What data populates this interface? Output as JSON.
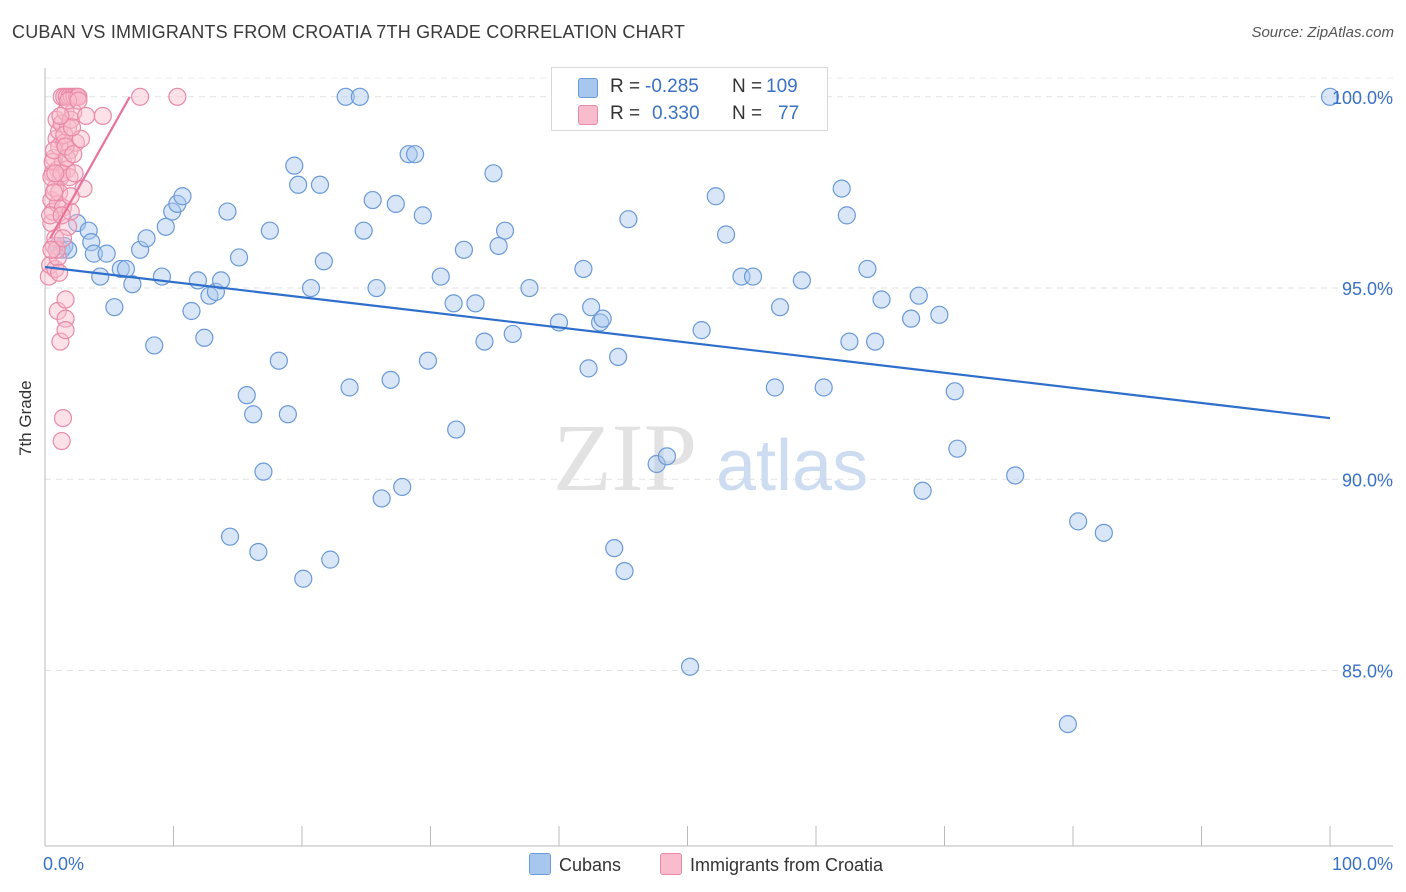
{
  "title": "CUBAN VS IMMIGRANTS FROM CROATIA 7TH GRADE CORRELATION CHART",
  "source": "Source: ZipAtlas.com",
  "watermark": {
    "zip": "ZIP",
    "atlas": "atlas"
  },
  "stats": [
    {
      "r_label": "R =",
      "r_value": "-0.285",
      "n_label": "N =",
      "n_value": "109",
      "color": "#a8c7ee",
      "border": "#6b9ad8"
    },
    {
      "r_label": "R =",
      "r_value": "0.330",
      "n_label": "N =",
      "n_value": "77",
      "color": "#f8bccd",
      "border": "#e98aa8"
    }
  ],
  "legend": [
    {
      "label": "Cubans",
      "color": "#a8c7ee",
      "border": "#6b9ad8"
    },
    {
      "label": "Immigrants from Croatia",
      "color": "#f8bccd",
      "border": "#e98aa8"
    }
  ],
  "chart_data": {
    "type": "scatter",
    "title": "CUBAN VS IMMIGRANTS FROM CROATIA 7TH GRADE CORRELATION CHART",
    "xlabel": "",
    "ylabel": "7th Grade",
    "xlim": [
      0,
      100
    ],
    "ylim": [
      80.5,
      100.5
    ],
    "x_tick_labels": [
      "0.0%",
      "100.0%"
    ],
    "y_ticks": [
      85,
      90,
      95,
      100
    ],
    "y_tick_labels": [
      "85.0%",
      "90.0%",
      "95.0%",
      "100.0%"
    ],
    "grid": true,
    "legend_position": "bottom",
    "series": [
      {
        "name": "Cubans",
        "color": "#6b9ad8",
        "fill": "#a8c7ee",
        "trend": {
          "x": [
            0,
            100
          ],
          "y": [
            95.55,
            91.6
          ],
          "color": "#2f6fcc"
        },
        "points": [
          [
            1.0,
            96.1
          ],
          [
            1.3,
            96.0
          ],
          [
            1.5,
            96.1
          ],
          [
            1.8,
            96.0
          ],
          [
            2.5,
            96.7
          ],
          [
            3.4,
            96.5
          ],
          [
            3.6,
            96.2
          ],
          [
            3.8,
            95.9
          ],
          [
            4.3,
            95.3
          ],
          [
            4.8,
            95.9
          ],
          [
            5.4,
            94.5
          ],
          [
            5.9,
            95.5
          ],
          [
            6.3,
            95.5
          ],
          [
            6.8,
            95.1
          ],
          [
            7.4,
            96.0
          ],
          [
            7.9,
            96.3
          ],
          [
            8.5,
            93.5
          ],
          [
            9.1,
            95.3
          ],
          [
            9.4,
            96.6
          ],
          [
            9.9,
            97.0
          ],
          [
            10.3,
            97.2
          ],
          [
            10.7,
            97.4
          ],
          [
            11.4,
            94.4
          ],
          [
            11.9,
            95.2
          ],
          [
            12.4,
            93.7
          ],
          [
            12.8,
            94.8
          ],
          [
            13.3,
            94.9
          ],
          [
            13.7,
            95.2
          ],
          [
            14.2,
            97.0
          ],
          [
            14.4,
            88.5
          ],
          [
            15.1,
            95.8
          ],
          [
            15.7,
            92.2
          ],
          [
            16.2,
            91.7
          ],
          [
            16.6,
            88.1
          ],
          [
            17.0,
            90.2
          ],
          [
            17.5,
            96.5
          ],
          [
            18.2,
            93.1
          ],
          [
            18.9,
            91.7
          ],
          [
            19.4,
            98.2
          ],
          [
            19.7,
            97.7
          ],
          [
            20.1,
            87.4
          ],
          [
            20.7,
            95.0
          ],
          [
            21.4,
            97.7
          ],
          [
            21.7,
            95.7
          ],
          [
            22.2,
            87.9
          ],
          [
            23.4,
            100.0
          ],
          [
            23.7,
            92.4
          ],
          [
            24.5,
            100.0
          ],
          [
            24.8,
            96.5
          ],
          [
            25.5,
            97.3
          ],
          [
            25.8,
            95.0
          ],
          [
            26.2,
            89.5
          ],
          [
            26.9,
            92.6
          ],
          [
            27.3,
            97.2
          ],
          [
            27.8,
            89.8
          ],
          [
            28.3,
            98.5
          ],
          [
            28.8,
            98.5
          ],
          [
            29.4,
            96.9
          ],
          [
            29.8,
            93.1
          ],
          [
            30.8,
            95.3
          ],
          [
            31.8,
            94.6
          ],
          [
            32.0,
            91.3
          ],
          [
            32.6,
            96.0
          ],
          [
            33.5,
            94.6
          ],
          [
            34.2,
            93.6
          ],
          [
            34.9,
            98.0
          ],
          [
            35.3,
            96.1
          ],
          [
            35.8,
            96.5
          ],
          [
            36.4,
            93.8
          ],
          [
            37.7,
            95.0
          ],
          [
            40.0,
            94.1
          ],
          [
            41.9,
            95.5
          ],
          [
            42.3,
            92.9
          ],
          [
            42.5,
            94.5
          ],
          [
            43.2,
            94.1
          ],
          [
            43.4,
            94.2
          ],
          [
            44.3,
            88.2
          ],
          [
            44.6,
            93.2
          ],
          [
            45.1,
            87.6
          ],
          [
            45.4,
            96.8
          ],
          [
            47.6,
            90.4
          ],
          [
            48.4,
            90.6
          ],
          [
            50.2,
            85.1
          ],
          [
            51.1,
            93.9
          ],
          [
            52.2,
            97.4
          ],
          [
            53.0,
            96.4
          ],
          [
            54.2,
            95.3
          ],
          [
            55.1,
            95.3
          ],
          [
            56.8,
            92.4
          ],
          [
            57.2,
            94.5
          ],
          [
            58.9,
            95.2
          ],
          [
            60.6,
            92.4
          ],
          [
            62.0,
            97.6
          ],
          [
            62.4,
            96.9
          ],
          [
            62.6,
            93.6
          ],
          [
            64.0,
            95.5
          ],
          [
            64.6,
            93.6
          ],
          [
            65.1,
            94.7
          ],
          [
            67.4,
            94.2
          ],
          [
            68.0,
            94.8
          ],
          [
            68.3,
            89.7
          ],
          [
            69.6,
            94.3
          ],
          [
            70.8,
            92.3
          ],
          [
            71.0,
            90.8
          ],
          [
            75.5,
            90.1
          ],
          [
            80.4,
            88.9
          ],
          [
            82.4,
            88.6
          ],
          [
            79.6,
            83.6
          ],
          [
            100.0,
            100.0
          ]
        ]
      },
      {
        "name": "Immigrants from Croatia",
        "color": "#e98aa8",
        "fill": "#f8bccd",
        "trend": {
          "x": [
            0.4,
            6.6
          ],
          "y": [
            96.3,
            100.0
          ],
          "color": "#e8729a"
        },
        "points": [
          [
            0.3,
            95.3
          ],
          [
            0.4,
            95.6
          ],
          [
            0.5,
            96.7
          ],
          [
            0.5,
            97.3
          ],
          [
            0.6,
            97.0
          ],
          [
            0.6,
            98.0
          ],
          [
            0.7,
            96.1
          ],
          [
            0.7,
            98.4
          ],
          [
            0.8,
            95.5
          ],
          [
            0.8,
            97.6
          ],
          [
            0.9,
            99.4
          ],
          [
            0.9,
            98.9
          ],
          [
            1.0,
            98.1
          ],
          [
            1.0,
            97.2
          ],
          [
            1.0,
            94.4
          ],
          [
            1.1,
            99.1
          ],
          [
            1.1,
            98.7
          ],
          [
            1.2,
            97.9
          ],
          [
            1.2,
            93.6
          ],
          [
            1.3,
            100.0
          ],
          [
            1.3,
            99.3
          ],
          [
            1.4,
            98.3
          ],
          [
            1.4,
            97.1
          ],
          [
            1.5,
            100.0
          ],
          [
            1.5,
            98.8
          ],
          [
            1.6,
            99.6
          ],
          [
            1.6,
            94.2
          ],
          [
            1.7,
            100.0
          ],
          [
            1.7,
            98.1
          ],
          [
            1.8,
            99.2
          ],
          [
            1.8,
            96.6
          ],
          [
            1.9,
            100.0
          ],
          [
            1.9,
            98.6
          ],
          [
            2.0,
            99.4
          ],
          [
            2.0,
            97.0
          ],
          [
            2.1,
            100.0
          ],
          [
            2.2,
            99.6
          ],
          [
            2.3,
            100.0
          ],
          [
            2.4,
            98.8
          ],
          [
            2.5,
            100.0
          ],
          [
            2.6,
            100.0
          ],
          [
            2.8,
            98.9
          ],
          [
            3.0,
            97.6
          ],
          [
            3.2,
            99.5
          ],
          [
            4.5,
            99.5
          ],
          [
            7.4,
            100.0
          ],
          [
            10.3,
            100.0
          ],
          [
            1.3,
            91.0
          ],
          [
            1.4,
            91.6
          ],
          [
            1.6,
            93.9
          ],
          [
            1.6,
            94.7
          ],
          [
            0.4,
            96.9
          ],
          [
            0.5,
            97.9
          ],
          [
            0.6,
            98.3
          ],
          [
            0.7,
            98.6
          ],
          [
            0.8,
            96.3
          ],
          [
            1.0,
            95.8
          ],
          [
            1.1,
            97.5
          ],
          [
            1.3,
            98.0
          ],
          [
            1.5,
            99.0
          ],
          [
            1.7,
            98.4
          ],
          [
            1.9,
            97.9
          ],
          [
            2.1,
            99.2
          ],
          [
            2.3,
            98.0
          ],
          [
            0.9,
            96.0
          ],
          [
            1.2,
            99.5
          ],
          [
            1.4,
            96.3
          ],
          [
            1.8,
            99.9
          ],
          [
            2.0,
            97.4
          ],
          [
            2.6,
            99.9
          ],
          [
            0.7,
            97.5
          ],
          [
            1.1,
            95.4
          ],
          [
            1.3,
            96.9
          ],
          [
            1.6,
            98.7
          ],
          [
            2.2,
            98.5
          ],
          [
            0.5,
            96.0
          ],
          [
            0.8,
            98.0
          ]
        ]
      }
    ]
  }
}
